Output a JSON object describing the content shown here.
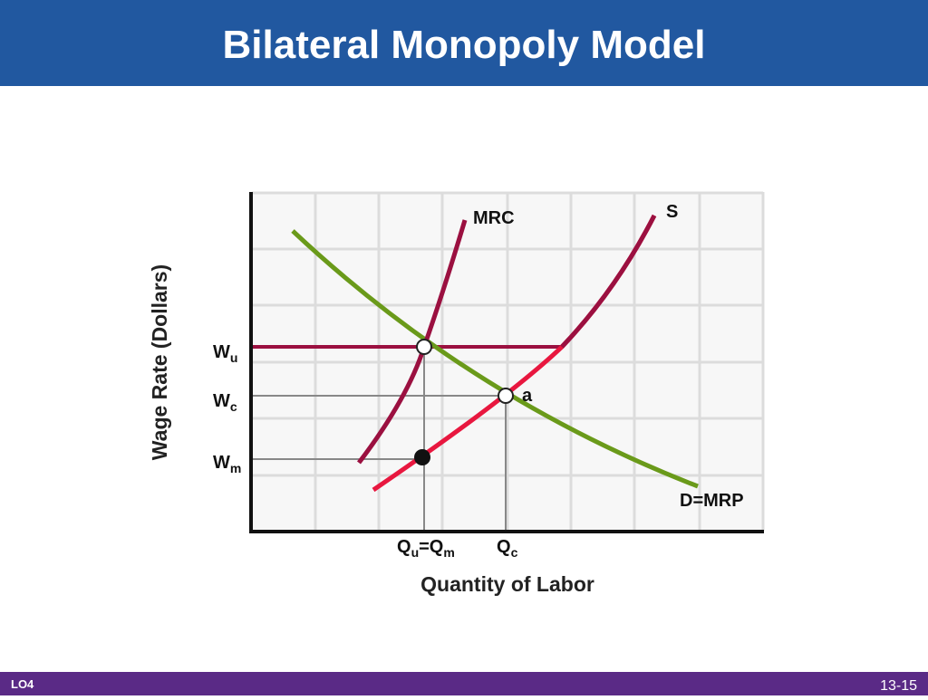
{
  "header": {
    "title": "Bilateral Monopoly Model"
  },
  "diagram": {
    "y_axis_title": "Wage Rate (Dollars)",
    "x_axis_title": "Quantity of Labor",
    "curves": {
      "mrc": "MRC",
      "supply": "S",
      "demand": "D=MRP"
    },
    "point_label": "a",
    "wage_labels": {
      "wu": [
        {
          "t": "W"
        },
        {
          "t": "u",
          "sub": true
        }
      ],
      "wc": [
        {
          "t": "W"
        },
        {
          "t": "c",
          "sub": true
        }
      ],
      "wm": [
        {
          "t": "W"
        },
        {
          "t": "m",
          "sub": true
        }
      ]
    },
    "quantity_labels": {
      "qu_qm": [
        {
          "t": "Q"
        },
        {
          "t": "u",
          "sub": true
        },
        {
          "t": "=Q"
        },
        {
          "t": "m",
          "sub": true
        }
      ],
      "qc": [
        {
          "t": "Q"
        },
        {
          "t": "c",
          "sub": true
        }
      ]
    }
  },
  "footer": {
    "left": "LO4",
    "right": "13-15"
  }
}
